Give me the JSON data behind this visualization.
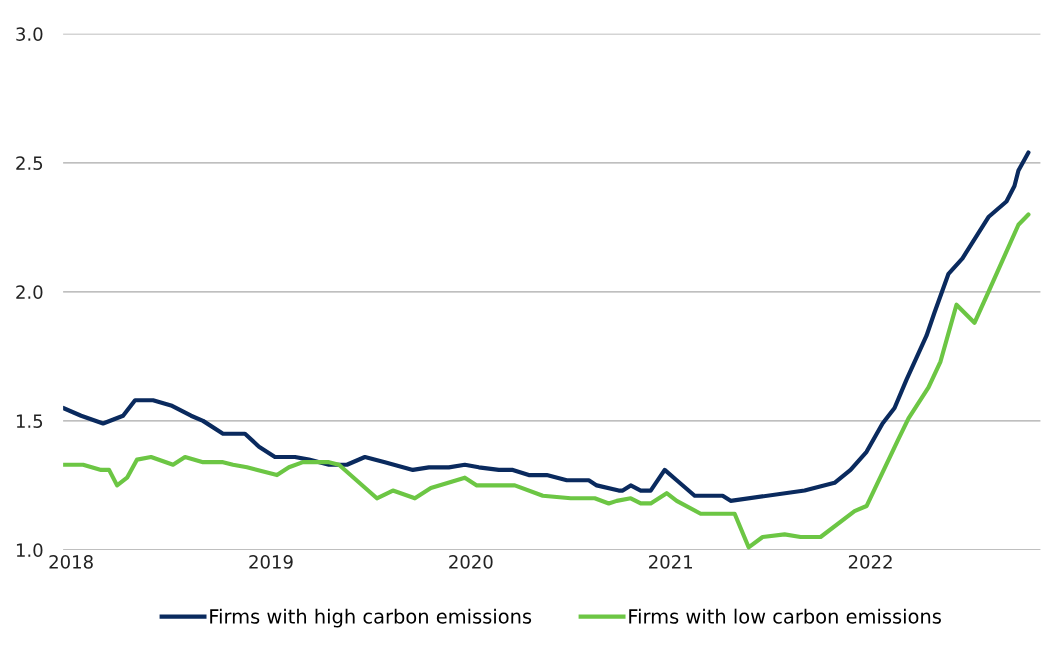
{
  "chart_data": {
    "type": "line",
    "xlim": [
      2017.96,
      2022.85
    ],
    "xticks": [
      2018,
      2019,
      2020,
      2021,
      2022
    ],
    "ylim": [
      1,
      3
    ],
    "yticks": [
      {
        "value": 1,
        "label": "1.0"
      },
      {
        "value": 1.5,
        "label": "1.5"
      },
      {
        "value": 2,
        "label": "2.0"
      },
      {
        "value": 2.5,
        "label": "2.5"
      },
      {
        "value": 3,
        "label": "3.0"
      }
    ],
    "grid": "y",
    "legend": "bottom",
    "marker": "none",
    "line_style": "solid",
    "series": [
      {
        "name": "Firms with high carbon emissions",
        "color": "#0a2a5e",
        "x": [
          2017.96,
          2018.05,
          2018.16,
          2018.26,
          2018.32,
          2018.41,
          2018.5,
          2018.6,
          2018.66,
          2018.76,
          2018.87,
          2018.94,
          2019.02,
          2019.12,
          2019.19,
          2019.29,
          2019.38,
          2019.47,
          2019.57,
          2019.71,
          2019.79,
          2019.89,
          2019.97,
          2020.04,
          2020.14,
          2020.21,
          2020.29,
          2020.38,
          2020.48,
          2020.59,
          2020.63,
          2020.74,
          2020.76,
          2020.8,
          2020.85,
          2020.9,
          2020.97,
          2021.03,
          2021.12,
          2021.26,
          2021.3,
          2021.67,
          2021.82,
          2021.9,
          2021.98,
          2022.06,
          2022.12,
          2022.18,
          2022.28,
          2022.32,
          2022.39,
          2022.46,
          2022.59,
          2022.68,
          2022.72,
          2022.74,
          2022.79
        ],
        "values": [
          1.55,
          1.52,
          1.49,
          1.52,
          1.58,
          1.58,
          1.56,
          1.52,
          1.5,
          1.45,
          1.45,
          1.4,
          1.36,
          1.36,
          1.35,
          1.33,
          1.33,
          1.36,
          1.34,
          1.31,
          1.32,
          1.32,
          1.33,
          1.32,
          1.31,
          1.31,
          1.29,
          1.29,
          1.27,
          1.27,
          1.25,
          1.23,
          1.23,
          1.25,
          1.23,
          1.23,
          1.31,
          1.27,
          1.21,
          1.21,
          1.19,
          1.23,
          1.26,
          1.31,
          1.38,
          1.49,
          1.55,
          1.66,
          1.83,
          1.92,
          2.07,
          2.13,
          2.29,
          2.35,
          2.41,
          2.47,
          2.54
        ]
      },
      {
        "name": "Firms with low carbon emissions",
        "color": "#6cc644",
        "x": [
          2017.96,
          2018.06,
          2018.15,
          2018.19,
          2018.23,
          2018.28,
          2018.33,
          2018.4,
          2018.51,
          2018.57,
          2018.66,
          2018.76,
          2018.81,
          2018.88,
          2019.03,
          2019.09,
          2019.16,
          2019.29,
          2019.34,
          2019.53,
          2019.61,
          2019.72,
          2019.8,
          2019.97,
          2020.03,
          2020.22,
          2020.36,
          2020.5,
          2020.62,
          2020.69,
          2020.73,
          2020.8,
          2020.85,
          2020.9,
          2020.98,
          2021.03,
          2021.15,
          2021.32,
          2021.39,
          2021.46,
          2021.57,
          2021.65,
          2021.75,
          2021.92,
          2021.98,
          2022.14,
          2022.19,
          2022.29,
          2022.35,
          2022.43,
          2022.52,
          2022.59,
          2022.74,
          2022.79
        ],
        "values": [
          1.33,
          1.33,
          1.31,
          1.31,
          1.25,
          1.28,
          1.35,
          1.36,
          1.33,
          1.36,
          1.34,
          1.34,
          1.33,
          1.32,
          1.29,
          1.32,
          1.34,
          1.34,
          1.33,
          1.2,
          1.23,
          1.2,
          1.24,
          1.28,
          1.25,
          1.25,
          1.21,
          1.2,
          1.2,
          1.18,
          1.19,
          1.2,
          1.18,
          1.18,
          1.22,
          1.19,
          1.14,
          1.14,
          1.01,
          1.05,
          1.06,
          1.05,
          1.05,
          1.15,
          1.17,
          1.43,
          1.51,
          1.63,
          1.73,
          1.95,
          1.88,
          2.0,
          2.26,
          2.3
        ]
      }
    ]
  }
}
